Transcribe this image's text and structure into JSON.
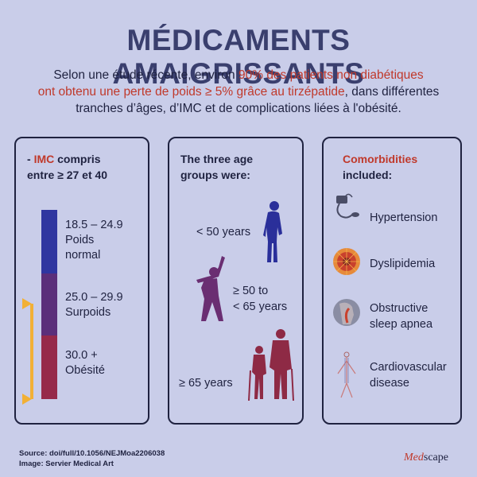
{
  "title": "MÉDICAMENTS AMAIGRISSANTS",
  "intro": {
    "part1": "Selon une étude récente, environ ",
    "highlight1": "90% des patients non diabétiques",
    "highlight2": "ont obtenu une perte de poids ≥ 5% grâce au tirzépatide",
    "part2": ", dans différentes tranches d’âges, d’IMC et de complications liées à l'obésité."
  },
  "bmi_panel": {
    "prefix": "- ",
    "imc": "IMC",
    "heading_rest": " compris",
    "heading_line2": "entre ≥ 27 et 40",
    "bands": [
      {
        "range": "18.5 – 24.9",
        "label1": "Poids",
        "label2": "normal",
        "color": "#2f36a0"
      },
      {
        "range": "25.0 – 29.9",
        "label1": "Surpoids",
        "label2": "",
        "color": "#5b2f7a"
      },
      {
        "range": "30.0 +",
        "label1": "Obésité",
        "label2": "",
        "color": "#962a4a"
      }
    ],
    "bracket_color": "#f2b035"
  },
  "age_panel": {
    "heading_line1": "The three age",
    "heading_line2": "groups were:",
    "groups": [
      {
        "label1": "< 50 years",
        "label2": ""
      },
      {
        "label1": "≥ 50 to",
        "label2": "< 65 years"
      },
      {
        "label1": "≥ 65 years",
        "label2": ""
      }
    ]
  },
  "comorb_panel": {
    "heading_line1": "Comorbidities",
    "heading_line2": "included:",
    "items": [
      {
        "label1": "Hypertension",
        "label2": "",
        "icon": "blood-pressure-cuff-icon"
      },
      {
        "label1": "Dyslipidemia",
        "label2": "",
        "icon": "artery-plaque-icon"
      },
      {
        "label1": "Obstructive",
        "label2": "sleep apnea",
        "icon": "airway-head-icon"
      },
      {
        "label1": "Cardiovascular",
        "label2": "disease",
        "icon": "vascular-system-icon"
      }
    ]
  },
  "source_line1": "Source: doi/full/10.1056/NEJMoa2206038",
  "source_line2": "Image: Servier Medical Art",
  "brand": {
    "prefix": "Med",
    "suffix": "scape"
  },
  "colors": {
    "background": "#c9cde9",
    "accent_red": "#c0392b",
    "title": "#3a3f6e",
    "figure_blue": "#2a2f9a",
    "figure_purple": "#6a2e72",
    "figure_maroon": "#8e2a45"
  }
}
